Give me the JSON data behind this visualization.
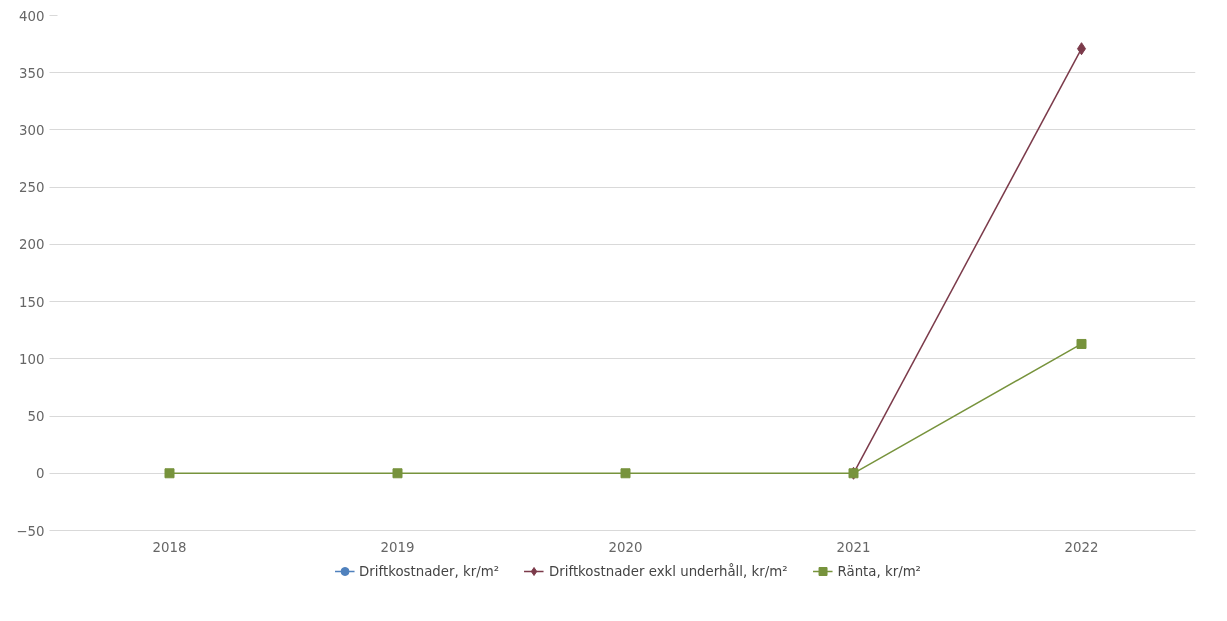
{
  "chart_data": {
    "type": "line",
    "categories": [
      "2018",
      "2019",
      "2020",
      "2021",
      "2022"
    ],
    "series": [
      {
        "name": "Driftkostnader, kr/m²",
        "color": "#4f81bd",
        "marker": "circle",
        "values": [
          null,
          null,
          null,
          null,
          null
        ]
      },
      {
        "name": "Driftkostnader exkl underhåll, kr/m²",
        "color": "#7b3a4a",
        "marker": "diamond",
        "values": [
          null,
          null,
          null,
          0,
          371
        ]
      },
      {
        "name": "Ränta, kr/m²",
        "color": "#77933c",
        "marker": "square",
        "values": [
          0,
          0,
          0,
          0,
          113
        ]
      }
    ],
    "ylim": [
      -50,
      400
    ],
    "yticks": [
      -50,
      0,
      50,
      100,
      150,
      200,
      250,
      300,
      350,
      400
    ],
    "grid": "y",
    "legend": "bottom"
  }
}
